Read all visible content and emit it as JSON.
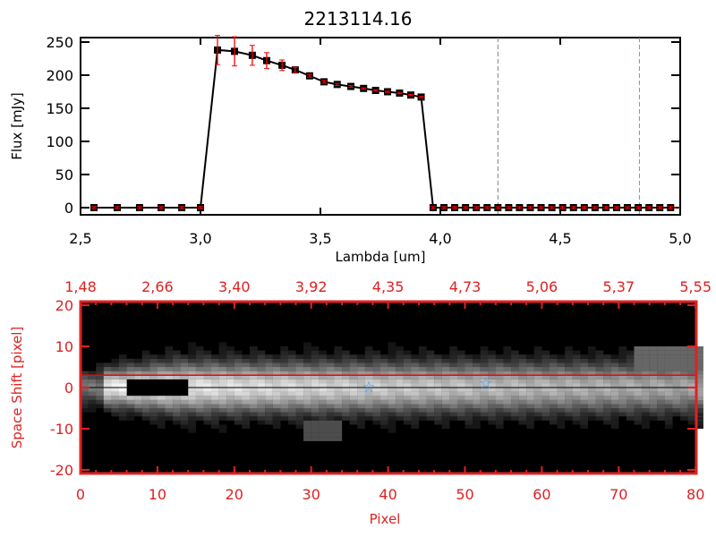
{
  "chart_data": [
    {
      "type": "line",
      "title": "2213114.16",
      "xlabel": "Lambda [um]",
      "ylabel": "Flux [mJy]",
      "xlim": [
        2.5,
        5.0
      ],
      "ylim": [
        0,
        250
      ],
      "xticks": [
        "2.5",
        "3.0",
        "3.5",
        "4.0",
        "4.5",
        "5.0"
      ],
      "yticks": [
        "0",
        "50",
        "100",
        "150",
        "200",
        "250"
      ],
      "series": [
        {
          "name": "flux",
          "x": [
            2.556,
            2.653,
            2.746,
            2.836,
            2.922,
            3.0,
            3.071,
            3.142,
            3.216,
            3.276,
            3.34,
            3.395,
            3.455,
            3.515,
            3.57,
            3.627,
            3.68,
            3.73,
            3.78,
            3.83,
            3.877,
            3.92,
            3.97,
            4.015,
            4.06,
            4.105,
            4.15,
            4.195,
            4.24,
            4.285,
            4.33,
            4.375,
            4.42,
            4.465,
            4.51,
            4.555,
            4.6,
            4.645,
            4.69,
            4.735,
            4.78,
            4.825,
            4.87,
            4.915,
            4.96
          ],
          "y": [
            0,
            0,
            0,
            0,
            0,
            0,
            238,
            236,
            230,
            222,
            215,
            208,
            199,
            190,
            186,
            183,
            180,
            177,
            175,
            173,
            170,
            167,
            0,
            0,
            0,
            0,
            0,
            0,
            0,
            0,
            0,
            0,
            0,
            0,
            0,
            0,
            0,
            0,
            0,
            0,
            0,
            0,
            0,
            0,
            0
          ],
          "err": [
            0,
            0,
            0,
            0,
            0,
            0,
            22,
            22,
            15,
            12,
            8,
            4,
            2,
            2,
            1.5,
            1.5,
            1,
            1,
            1,
            1,
            1,
            1,
            0,
            0,
            0,
            0,
            0,
            0,
            0,
            0,
            0,
            0,
            0,
            0,
            0,
            0,
            0,
            0,
            0,
            0,
            0,
            0,
            0,
            0,
            0
          ]
        }
      ],
      "vlines": [
        {
          "x": 4.24,
          "color": "#808080"
        },
        {
          "x": 4.83,
          "color": "#33aaff"
        }
      ],
      "hline": {
        "y": 0,
        "color": "#ff0000",
        "xrange": [
          4.0,
          5.0
        ]
      }
    },
    {
      "type": "heatmap",
      "xlabel": "Pixel",
      "ylabel": "Space Shift [pixel]",
      "xlim": [
        0,
        81
      ],
      "ylim": [
        -21,
        21
      ],
      "xticks": [
        "0",
        "10",
        "20",
        "30",
        "40",
        "50",
        "60",
        "70",
        "80"
      ],
      "yticks": [
        "-20",
        "-10",
        "0",
        "10",
        "20"
      ],
      "top_xticks": [
        "1.48",
        "2.66",
        "3.40",
        "3.92",
        "4.35",
        "4.73",
        "5.06",
        "5.37",
        "5.55"
      ],
      "markers": [
        {
          "x": 37.5,
          "y": 0.2
        },
        {
          "x": 52.7,
          "y": 1.2
        }
      ],
      "trace_lines": [
        {
          "y": 3,
          "color": "#ff0000"
        },
        {
          "y": 0,
          "color": "#000000"
        }
      ],
      "axis_color": "#dd2222"
    }
  ]
}
